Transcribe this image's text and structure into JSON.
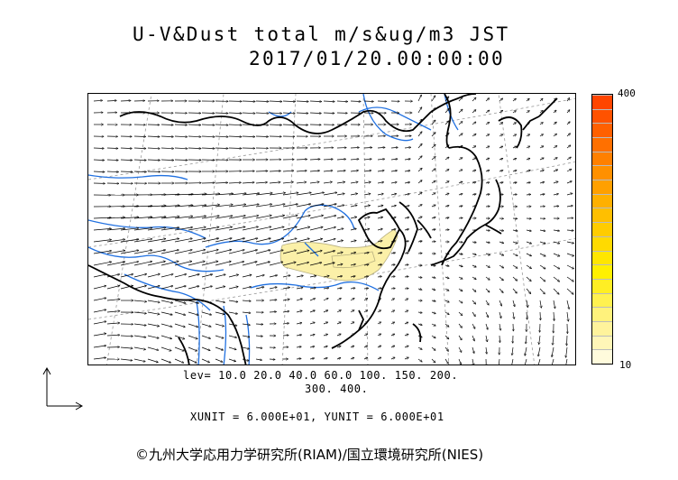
{
  "title": {
    "line1": "U-V&Dust total m/s&ug/m3 JST",
    "line2": "2017/01/20.00:00:00"
  },
  "colorbar": {
    "max_label": "400",
    "min_label": "10",
    "colors": [
      "#fffbdc",
      "#fff6b8",
      "#fff39c",
      "#fff27c",
      "#fff150",
      "#ffee24",
      "#fff000",
      "#ffe600",
      "#ffda00",
      "#ffcc00",
      "#ffbf00",
      "#ffb000",
      "#ffa000",
      "#ff9000",
      "#ff8000",
      "#ff7000",
      "#ff6000",
      "#ff5200",
      "#ff4500"
    ]
  },
  "levels": {
    "line1": "lev= 10.0 20.0 40.0 60.0 100. 150. 200.",
    "line2": "300. 400."
  },
  "units": {
    "text": "XUNIT = 6.000E+01, YUNIT = 6.000E+01"
  },
  "copyright": "©九州大学応用力学研究所(RIAM)/国立環境研究所(NIES)",
  "colors": {
    "coast": "#000000",
    "rivers": "#2070e0",
    "dust": "#fbf0a8",
    "grid": "#888888"
  }
}
